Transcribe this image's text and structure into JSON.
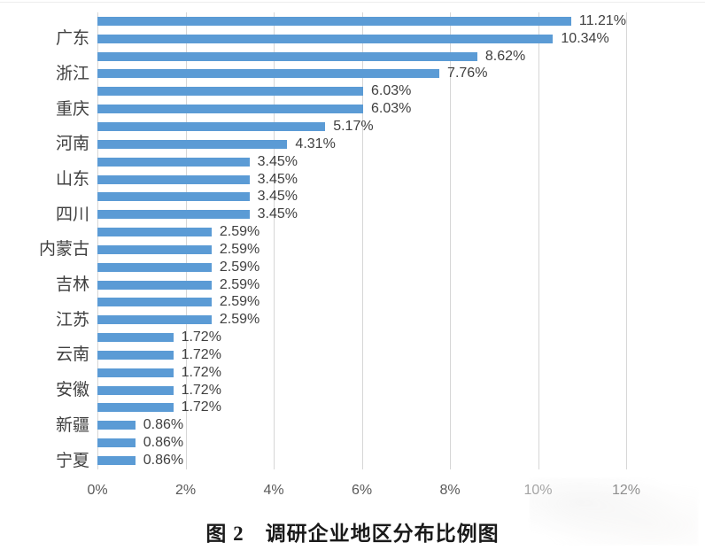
{
  "figure": {
    "caption": "图 2　调研企业地区分布比例图"
  },
  "colors": {
    "bar": "#5B9BD5",
    "gridline": "#D6D6D6",
    "category_text": "#404040",
    "value_text": "#404040",
    "axis_text": "#595959",
    "background": "#FFFFFF"
  },
  "chart_data": {
    "type": "bar",
    "orientation": "horizontal",
    "title": "图 2　调研企业地区分布比例图",
    "xlabel": "",
    "ylabel": "",
    "xlim": [
      0,
      12
    ],
    "x_ticks": [
      "0%",
      "2%",
      "4%",
      "6%",
      "8%",
      "10%",
      "12%"
    ],
    "grid": true,
    "value_label_position": "outside-end",
    "categories_shown": [
      "广东",
      "浙江",
      "重庆",
      "河南",
      "山东",
      "四川",
      "内蒙古",
      "吉林",
      "江苏",
      "云南",
      "安徽",
      "新疆",
      "宁夏"
    ],
    "bars": [
      {
        "category": "",
        "value": 11.21,
        "label": "11.21%"
      },
      {
        "category": "广东",
        "value": 10.34,
        "label": "10.34%"
      },
      {
        "category": "",
        "value": 8.62,
        "label": "8.62%"
      },
      {
        "category": "浙江",
        "value": 7.76,
        "label": "7.76%"
      },
      {
        "category": "",
        "value": 6.03,
        "label": "6.03%"
      },
      {
        "category": "重庆",
        "value": 6.03,
        "label": "6.03%"
      },
      {
        "category": "",
        "value": 5.17,
        "label": "5.17%"
      },
      {
        "category": "河南",
        "value": 4.31,
        "label": "4.31%"
      },
      {
        "category": "",
        "value": 3.45,
        "label": "3.45%"
      },
      {
        "category": "山东",
        "value": 3.45,
        "label": "3.45%"
      },
      {
        "category": "",
        "value": 3.45,
        "label": "3.45%"
      },
      {
        "category": "四川",
        "value": 3.45,
        "label": "3.45%"
      },
      {
        "category": "",
        "value": 2.59,
        "label": "2.59%"
      },
      {
        "category": "内蒙古",
        "value": 2.59,
        "label": "2.59%"
      },
      {
        "category": "",
        "value": 2.59,
        "label": "2.59%"
      },
      {
        "category": "吉林",
        "value": 2.59,
        "label": "2.59%"
      },
      {
        "category": "",
        "value": 2.59,
        "label": "2.59%"
      },
      {
        "category": "江苏",
        "value": 2.59,
        "label": "2.59%"
      },
      {
        "category": "",
        "value": 1.72,
        "label": "1.72%"
      },
      {
        "category": "云南",
        "value": 1.72,
        "label": "1.72%"
      },
      {
        "category": "",
        "value": 1.72,
        "label": "1.72%"
      },
      {
        "category": "安徽",
        "value": 1.72,
        "label": "1.72%"
      },
      {
        "category": "",
        "value": 1.72,
        "label": "1.72%"
      },
      {
        "category": "新疆",
        "value": 0.86,
        "label": "0.86%"
      },
      {
        "category": "",
        "value": 0.86,
        "label": "0.86%"
      },
      {
        "category": "宁夏",
        "value": 0.86,
        "label": "0.86%"
      }
    ]
  }
}
